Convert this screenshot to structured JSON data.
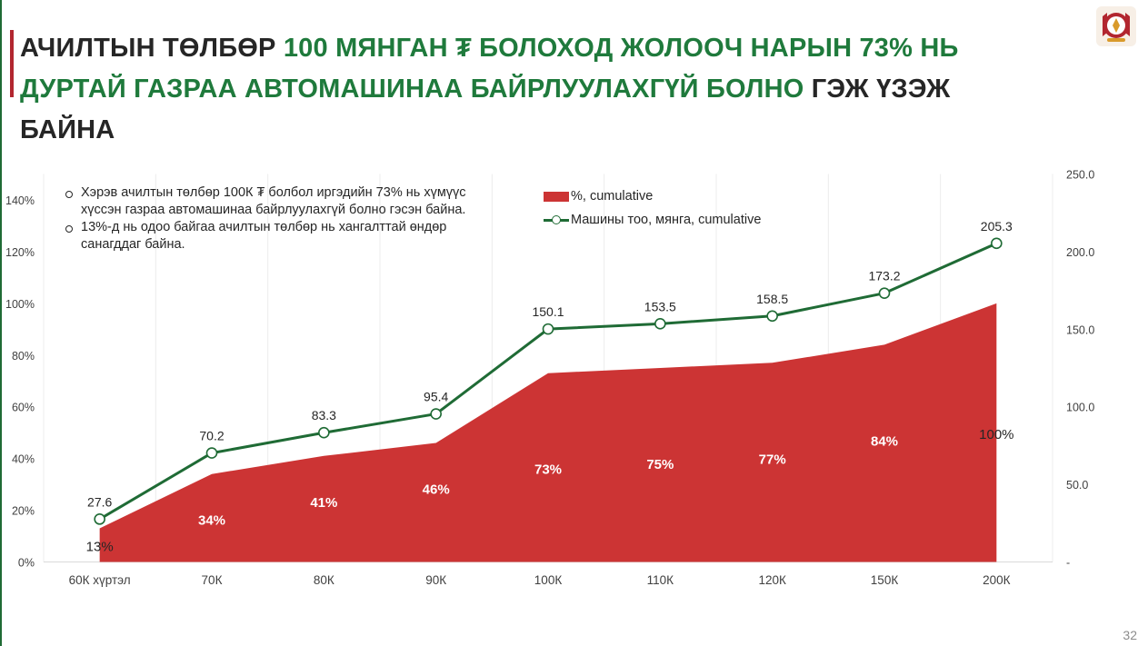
{
  "title": {
    "part1": "АЧИЛТЫН ТӨЛБӨР ",
    "part2": "100 МЯНГАН ₮ БОЛОХОД ЖОЛООЧ НАРЫН 73% НЬ ДУРТАЙ ГАЗРАА АВТОМАШИНАА БАЙРЛУУЛАХГҮЙ БОЛНО",
    "part3": " ГЭЖ ҮЗЭЖ БАЙНА"
  },
  "notes": [
    "Хэрэв ачилтын төлбөр 100К ₮ болбол иргэдийн 73% нь хүмүүс хүссэн газраа автомашинаа байрлуулахгүй болно гэсэн байна.",
    "13%-д нь одоо байгаа ачилтын төлбөр нь хангалттай өндөр санагддаг байна."
  ],
  "page_number": "32",
  "colors": {
    "area": "#cc3434",
    "line": "#1f6b35",
    "title_highlight": "#1f7a3c",
    "title_accent_bar": "#b2262f"
  },
  "chart_data": {
    "type": "area",
    "categories": [
      "60К хүртэл",
      "70К",
      "80К",
      "90К",
      "100К",
      "110К",
      "120К",
      "150К",
      "200К"
    ],
    "series": [
      {
        "name": "%, cumulative",
        "type": "area",
        "axis": "left",
        "values": [
          13,
          34,
          41,
          46,
          73,
          75,
          77,
          84,
          100
        ],
        "labels": [
          "13%",
          "34%",
          "41%",
          "46%",
          "73%",
          "75%",
          "77%",
          "84%",
          "100%"
        ]
      },
      {
        "name": "Машины тоо, мянга, cumulative",
        "type": "line",
        "axis": "right",
        "values": [
          27.6,
          70.2,
          83.3,
          95.4,
          150.1,
          153.5,
          158.5,
          173.2,
          205.3
        ],
        "labels": [
          "27.6",
          "70.2",
          "83.3",
          "95.4",
          "150.1",
          "153.5",
          "158.5",
          "173.2",
          "205.3"
        ]
      }
    ],
    "y_left": {
      "min": 0,
      "max": 150,
      "ticks": [
        0,
        20,
        40,
        60,
        80,
        100,
        120,
        140
      ],
      "tick_labels": [
        "0%",
        "20%",
        "40%",
        "60%",
        "80%",
        "100%",
        "120%",
        "140%"
      ]
    },
    "y_right": {
      "min": 0,
      "max": 250,
      "ticks": [
        0,
        50,
        100,
        150,
        200,
        250
      ],
      "tick_labels": [
        "-",
        "50.0",
        "100.0",
        "150.0",
        "200.0",
        "250.0"
      ]
    },
    "legend": {
      "position": "top-center"
    },
    "grid": {
      "vertical": true,
      "horizontal": false
    }
  }
}
